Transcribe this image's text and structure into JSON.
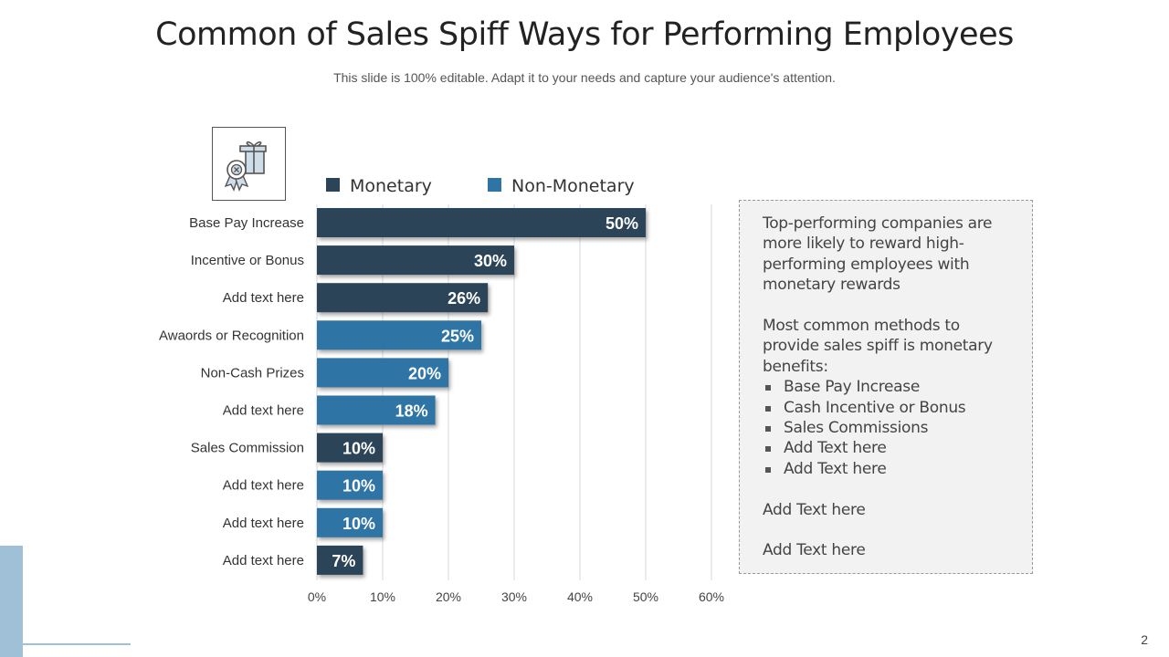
{
  "slide": {
    "title": "Common of Sales Spiff Ways for Performing Employees",
    "subtitle": "This slide is 100% editable. Adapt it to your needs and capture your audience's attention.",
    "page_number": "2"
  },
  "icon": {
    "name": "gift-award-icon"
  },
  "colors": {
    "monetary": "#2b4458",
    "non_monetary": "#2e75a6",
    "grid": "#d9d9d9",
    "accent_deco": "#9fc0d6"
  },
  "chart_data": {
    "type": "bar",
    "orientation": "horizontal",
    "categories": [
      "Base Pay Increase",
      "Incentive or Bonus",
      "Add text here",
      "Awaords or Recognition",
      "Non-Cash Prizes",
      "Add text here",
      "Sales Commission",
      "Add text here",
      "Add text here",
      "Add text here"
    ],
    "values": [
      50,
      30,
      26,
      25,
      20,
      18,
      10,
      10,
      10,
      7
    ],
    "value_labels": [
      "50%",
      "30%",
      "26%",
      "25%",
      "20%",
      "18%",
      "10%",
      "10%",
      "10%",
      "7%"
    ],
    "series_of_bar": [
      "Monetary",
      "Monetary",
      "Monetary",
      "Non-Monetary",
      "Non-Monetary",
      "Non-Monetary",
      "Monetary",
      "Non-Monetary",
      "Non-Monetary",
      "Monetary"
    ],
    "legend": [
      {
        "name": "Monetary",
        "color": "#2b4458"
      },
      {
        "name": "Non-Monetary",
        "color": "#2e75a6"
      }
    ],
    "legend_position": "top",
    "xlim": [
      0,
      60
    ],
    "xticks": [
      0,
      10,
      20,
      30,
      40,
      50,
      60
    ],
    "xtick_labels": [
      "0%",
      "10%",
      "20%",
      "30%",
      "40%",
      "50%",
      "60%"
    ],
    "grid": true,
    "title": "",
    "xlabel": "",
    "ylabel": ""
  },
  "info_box": {
    "para1": "Top-performing companies are more likely to reward high-performing employees with monetary rewards",
    "para2": "Most common methods to provide sales spiff is monetary benefits:",
    "bullets": [
      "Base Pay Increase",
      "Cash Incentive or Bonus",
      "Sales Commissions",
      "Add Text here",
      "Add Text here"
    ],
    "para3": "Add Text here",
    "para4": "Add Text here"
  }
}
